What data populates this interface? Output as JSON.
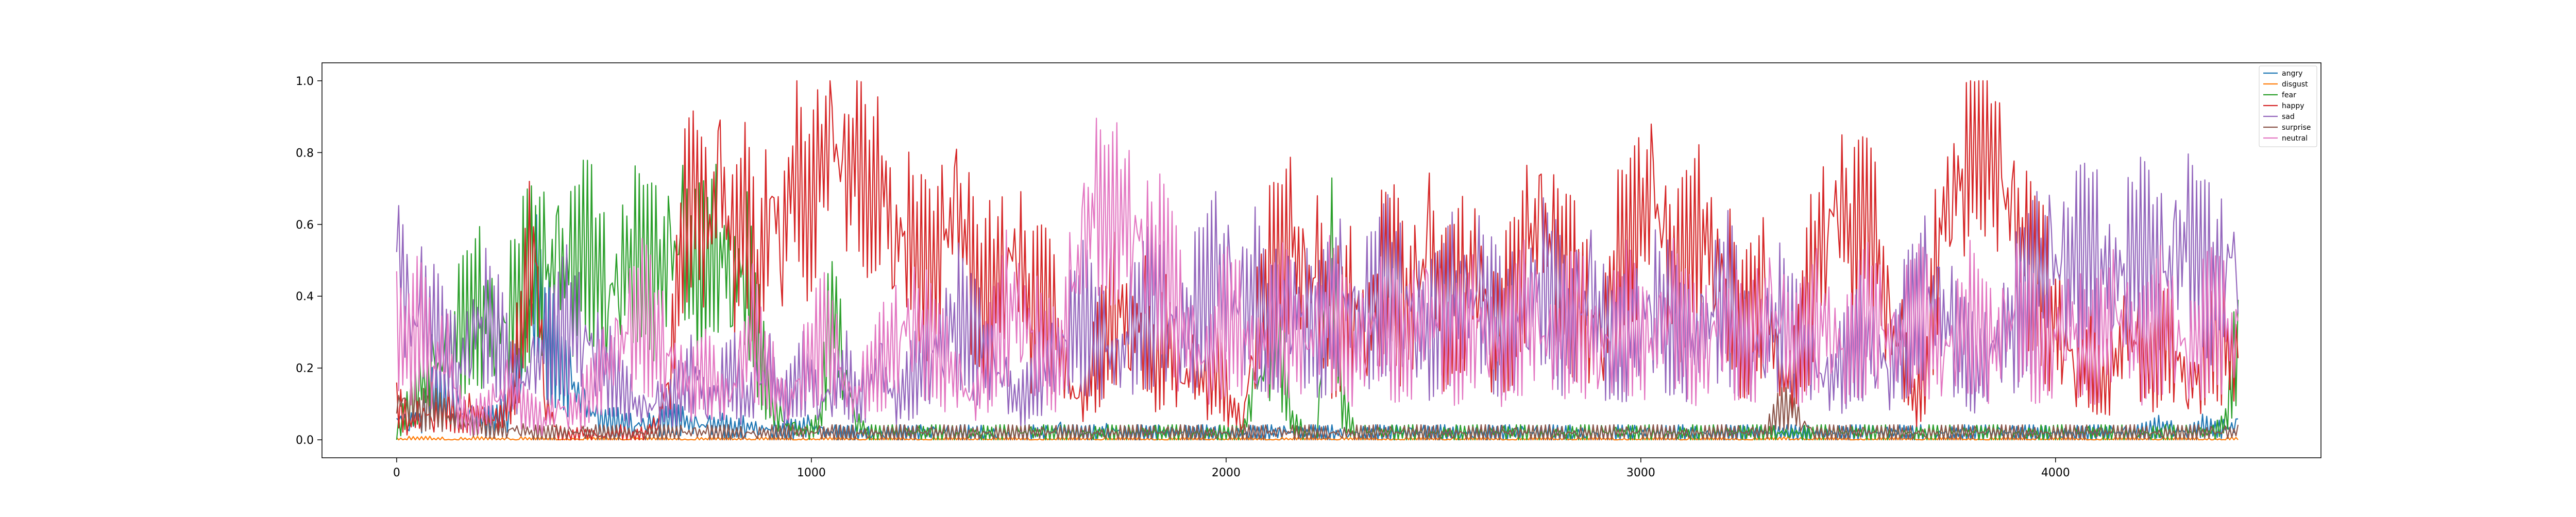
{
  "chart_data": {
    "type": "line",
    "title": "",
    "xlabel": "",
    "ylabel": "",
    "xlim": [
      -180,
      4640
    ],
    "ylim": [
      -0.05,
      1.05
    ],
    "x_ticks": [
      0,
      1000,
      2000,
      3000,
      4000
    ],
    "x_tick_labels": [
      "0",
      "1000",
      "2000",
      "3000",
      "4000"
    ],
    "y_ticks": [
      0.0,
      0.2,
      0.4,
      0.6,
      0.8,
      1.0
    ],
    "y_tick_labels": [
      "0.0",
      "0.2",
      "0.4",
      "0.6",
      "0.8",
      "1.0"
    ],
    "grid": false,
    "legend_position": "top-right",
    "x_range": [
      0,
      4440
    ],
    "sample_step": 30,
    "series": [
      {
        "name": "angry",
        "color": "#1f77b4",
        "values": [
          0.06,
          0.05,
          0.07,
          0.15,
          0.1,
          0.08,
          0.06,
          0.05,
          0.06,
          0.08,
          0.25,
          0.45,
          0.3,
          0.2,
          0.15,
          0.1,
          0.06,
          0.05,
          0.05,
          0.04,
          0.05,
          0.05,
          0.06,
          0.05,
          0.04,
          0.04,
          0.04,
          0.03,
          0.04,
          0.03,
          0.03,
          0.03,
          0.03,
          0.04,
          0.02,
          0.02,
          0.02,
          0.02,
          0.02,
          0.02,
          0.02,
          0.02,
          0.02,
          0.02,
          0.02,
          0.02,
          0.02,
          0.02,
          0.02,
          0.02,
          0.02,
          0.02,
          0.02,
          0.03,
          0.02,
          0.02,
          0.02,
          0.03,
          0.02,
          0.02,
          0.02,
          0.02,
          0.02,
          0.02,
          0.02,
          0.02,
          0.02,
          0.02,
          0.02,
          0.02,
          0.02,
          0.02,
          0.02,
          0.02,
          0.02,
          0.02,
          0.02,
          0.02,
          0.02,
          0.02,
          0.02,
          0.02,
          0.02,
          0.02,
          0.02,
          0.02,
          0.02,
          0.02,
          0.02,
          0.02,
          0.02,
          0.02,
          0.02,
          0.02,
          0.02,
          0.02,
          0.02,
          0.02,
          0.02,
          0.02,
          0.02,
          0.02,
          0.02,
          0.02,
          0.02,
          0.02,
          0.02,
          0.02,
          0.02,
          0.02,
          0.02,
          0.02,
          0.02,
          0.02,
          0.02,
          0.02,
          0.02,
          0.02,
          0.02,
          0.02,
          0.02,
          0.02,
          0.02,
          0.02,
          0.02,
          0.02,
          0.02,
          0.02,
          0.02,
          0.02,
          0.02,
          0.02,
          0.02,
          0.02,
          0.02,
          0.02,
          0.02,
          0.02,
          0.02,
          0.02,
          0.03,
          0.04,
          0.03,
          0.02,
          0.04,
          0.03,
          0.03,
          0.04
        ]
      },
      {
        "name": "disgust",
        "color": "#ff7f0e",
        "values": [
          0.0,
          0.0,
          0.0,
          0.0,
          0.0,
          0.0,
          0.0,
          0.0,
          0.0,
          0.0,
          0.0,
          0.0,
          0.0,
          0.0,
          0.0,
          0.0,
          0.0,
          0.0,
          0.0,
          0.0,
          0.0,
          0.0,
          0.0,
          0.0,
          0.0,
          0.0,
          0.0,
          0.0,
          0.0,
          0.0,
          0.0,
          0.0,
          0.0,
          0.0,
          0.0,
          0.0,
          0.0,
          0.0,
          0.0,
          0.0,
          0.0,
          0.0,
          0.0,
          0.0,
          0.0,
          0.0,
          0.0,
          0.0,
          0.0,
          0.0,
          0.0,
          0.0,
          0.0,
          0.0,
          0.0,
          0.0,
          0.0,
          0.0,
          0.0,
          0.0,
          0.0,
          0.0,
          0.0,
          0.0,
          0.0,
          0.0,
          0.0,
          0.0,
          0.0,
          0.0,
          0.0,
          0.0,
          0.0,
          0.0,
          0.0,
          0.0,
          0.0,
          0.0,
          0.0,
          0.0,
          0.0,
          0.0,
          0.0,
          0.0,
          0.0,
          0.0,
          0.0,
          0.0,
          0.0,
          0.0,
          0.0,
          0.0,
          0.0,
          0.0,
          0.0,
          0.0,
          0.0,
          0.0,
          0.0,
          0.0,
          0.0,
          0.0,
          0.0,
          0.0,
          0.0,
          0.0,
          0.0,
          0.0,
          0.0,
          0.0,
          0.0,
          0.0,
          0.0,
          0.0,
          0.0,
          0.0,
          0.0,
          0.0,
          0.0,
          0.0,
          0.0,
          0.0,
          0.0,
          0.0,
          0.0,
          0.0,
          0.0,
          0.0,
          0.0,
          0.0,
          0.0,
          0.0,
          0.0,
          0.0,
          0.0,
          0.0,
          0.0,
          0.0,
          0.0,
          0.0,
          0.0,
          0.0,
          0.0,
          0.0,
          0.0,
          0.0,
          0.0,
          0.0,
          0.0
        ]
      },
      {
        "name": "fear",
        "color": "#2ca02c",
        "values": [
          0.02,
          0.1,
          0.15,
          0.2,
          0.22,
          0.3,
          0.35,
          0.38,
          0.3,
          0.35,
          0.42,
          0.48,
          0.45,
          0.5,
          0.45,
          0.55,
          0.5,
          0.4,
          0.48,
          0.52,
          0.5,
          0.45,
          0.5,
          0.55,
          0.45,
          0.5,
          0.55,
          0.45,
          0.5,
          0.3,
          0.1,
          0.05,
          0.03,
          0.02,
          0.05,
          0.4,
          0.2,
          0.05,
          0.02,
          0.02,
          0.02,
          0.02,
          0.02,
          0.02,
          0.02,
          0.02,
          0.02,
          0.02,
          0.02,
          0.02,
          0.02,
          0.02,
          0.02,
          0.02,
          0.02,
          0.02,
          0.02,
          0.02,
          0.02,
          0.02,
          0.02,
          0.02,
          0.02,
          0.02,
          0.02,
          0.02,
          0.02,
          0.02,
          0.02,
          0.15,
          0.2,
          0.25,
          0.05,
          0.02,
          0.02,
          0.6,
          0.1,
          0.02,
          0.02,
          0.02,
          0.02,
          0.02,
          0.02,
          0.02,
          0.02,
          0.02,
          0.02,
          0.02,
          0.02,
          0.02,
          0.02,
          0.02,
          0.02,
          0.02,
          0.02,
          0.02,
          0.02,
          0.02,
          0.02,
          0.02,
          0.02,
          0.02,
          0.02,
          0.02,
          0.02,
          0.02,
          0.02,
          0.02,
          0.02,
          0.02,
          0.02,
          0.02,
          0.02,
          0.02,
          0.02,
          0.02,
          0.02,
          0.02,
          0.02,
          0.02,
          0.02,
          0.02,
          0.02,
          0.02,
          0.02,
          0.02,
          0.02,
          0.02,
          0.02,
          0.02,
          0.02,
          0.02,
          0.02,
          0.02,
          0.02,
          0.02,
          0.02,
          0.02,
          0.02,
          0.02,
          0.02,
          0.02,
          0.02,
          0.02,
          0.02,
          0.02,
          0.02,
          0.05,
          0.3
        ]
      },
      {
        "name": "happy",
        "color": "#d62728",
        "values": [
          0.1,
          0.05,
          0.08,
          0.06,
          0.1,
          0.05,
          0.08,
          0.06,
          0.05,
          0.1,
          0.3,
          0.6,
          0.1,
          0.02,
          0.01,
          0.02,
          0.01,
          0.01,
          0.02,
          0.01,
          0.02,
          0.05,
          0.2,
          0.6,
          0.7,
          0.55,
          0.75,
          0.5,
          0.65,
          0.4,
          0.7,
          0.55,
          0.8,
          0.6,
          0.75,
          0.85,
          0.7,
          0.8,
          0.65,
          0.75,
          0.55,
          0.6,
          0.5,
          0.45,
          0.55,
          0.65,
          0.5,
          0.35,
          0.45,
          0.5,
          0.55,
          0.35,
          0.4,
          0.3,
          0.15,
          0.1,
          0.2,
          0.3,
          0.4,
          0.3,
          0.35,
          0.2,
          0.3,
          0.15,
          0.2,
          0.15,
          0.2,
          0.1,
          0.05,
          0.3,
          0.45,
          0.5,
          0.55,
          0.4,
          0.45,
          0.3,
          0.35,
          0.4,
          0.3,
          0.45,
          0.5,
          0.35,
          0.4,
          0.55,
          0.35,
          0.4,
          0.45,
          0.5,
          0.3,
          0.35,
          0.4,
          0.55,
          0.6,
          0.5,
          0.45,
          0.4,
          0.35,
          0.3,
          0.5,
          0.55,
          0.6,
          0.7,
          0.5,
          0.45,
          0.55,
          0.6,
          0.5,
          0.45,
          0.3,
          0.35,
          0.4,
          0.2,
          0.15,
          0.3,
          0.5,
          0.6,
          0.7,
          0.55,
          0.65,
          0.5,
          0.3,
          0.25,
          0.1,
          0.2,
          0.6,
          0.7,
          0.75,
          0.85,
          0.8,
          0.7,
          0.6,
          0.5,
          0.45,
          0.35,
          0.3,
          0.2,
          0.25,
          0.15,
          0.2,
          0.3,
          0.25,
          0.2,
          0.3,
          0.25,
          0.15,
          0.2,
          0.3,
          0.25,
          0.2
        ]
      },
      {
        "name": "sad",
        "color": "#9467bd",
        "values": [
          0.6,
          0.3,
          0.35,
          0.3,
          0.25,
          0.2,
          0.3,
          0.35,
          0.3,
          0.2,
          0.15,
          0.2,
          0.25,
          0.3,
          0.35,
          0.3,
          0.25,
          0.2,
          0.15,
          0.1,
          0.08,
          0.1,
          0.1,
          0.15,
          0.2,
          0.1,
          0.15,
          0.2,
          0.1,
          0.15,
          0.2,
          0.1,
          0.15,
          0.2,
          0.1,
          0.15,
          0.2,
          0.1,
          0.15,
          0.2,
          0.1,
          0.15,
          0.2,
          0.25,
          0.3,
          0.35,
          0.3,
          0.25,
          0.2,
          0.15,
          0.1,
          0.15,
          0.2,
          0.25,
          0.3,
          0.35,
          0.3,
          0.25,
          0.2,
          0.3,
          0.35,
          0.4,
          0.35,
          0.3,
          0.35,
          0.4,
          0.45,
          0.4,
          0.35,
          0.4,
          0.3,
          0.35,
          0.4,
          0.35,
          0.3,
          0.35,
          0.4,
          0.3,
          0.35,
          0.4,
          0.45,
          0.4,
          0.35,
          0.3,
          0.35,
          0.4,
          0.35,
          0.4,
          0.35,
          0.3,
          0.35,
          0.4,
          0.45,
          0.4,
          0.3,
          0.35,
          0.4,
          0.3,
          0.25,
          0.3,
          0.35,
          0.4,
          0.35,
          0.3,
          0.25,
          0.3,
          0.35,
          0.4,
          0.3,
          0.25,
          0.3,
          0.35,
          0.3,
          0.25,
          0.2,
          0.15,
          0.2,
          0.25,
          0.3,
          0.25,
          0.2,
          0.3,
          0.35,
          0.4,
          0.35,
          0.3,
          0.25,
          0.2,
          0.25,
          0.3,
          0.35,
          0.4,
          0.45,
          0.5,
          0.45,
          0.5,
          0.55,
          0.5,
          0.45,
          0.5,
          0.55,
          0.5,
          0.45,
          0.5,
          0.55,
          0.5,
          0.45,
          0.5,
          0.55
        ]
      },
      {
        "name": "surprise",
        "color": "#8c564b",
        "values": [
          0.1,
          0.12,
          0.08,
          0.1,
          0.06,
          0.05,
          0.04,
          0.04,
          0.03,
          0.03,
          0.03,
          0.02,
          0.02,
          0.02,
          0.02,
          0.02,
          0.02,
          0.02,
          0.02,
          0.02,
          0.02,
          0.02,
          0.02,
          0.02,
          0.02,
          0.02,
          0.02,
          0.02,
          0.02,
          0.02,
          0.02,
          0.02,
          0.02,
          0.02,
          0.02,
          0.02,
          0.02,
          0.02,
          0.02,
          0.02,
          0.02,
          0.02,
          0.02,
          0.02,
          0.02,
          0.02,
          0.02,
          0.02,
          0.02,
          0.02,
          0.02,
          0.02,
          0.02,
          0.02,
          0.02,
          0.02,
          0.02,
          0.02,
          0.02,
          0.02,
          0.02,
          0.02,
          0.02,
          0.02,
          0.02,
          0.02,
          0.02,
          0.02,
          0.02,
          0.02,
          0.02,
          0.02,
          0.02,
          0.02,
          0.02,
          0.02,
          0.02,
          0.02,
          0.02,
          0.02,
          0.02,
          0.02,
          0.02,
          0.02,
          0.02,
          0.02,
          0.02,
          0.02,
          0.02,
          0.02,
          0.02,
          0.02,
          0.02,
          0.02,
          0.02,
          0.02,
          0.02,
          0.02,
          0.02,
          0.02,
          0.02,
          0.02,
          0.02,
          0.02,
          0.02,
          0.02,
          0.02,
          0.02,
          0.02,
          0.02,
          0.02,
          0.08,
          0.1,
          0.05,
          0.02,
          0.02,
          0.02,
          0.02,
          0.02,
          0.02,
          0.02,
          0.02,
          0.02,
          0.02,
          0.02,
          0.02,
          0.02,
          0.02,
          0.02,
          0.02,
          0.02,
          0.02,
          0.02,
          0.02,
          0.02,
          0.02,
          0.02,
          0.02,
          0.02,
          0.02,
          0.02,
          0.02,
          0.02,
          0.02,
          0.02,
          0.02,
          0.02,
          0.02,
          0.02
        ]
      },
      {
        "name": "neutral",
        "color": "#e377c2",
        "values": [
          0.3,
          0.25,
          0.35,
          0.2,
          0.3,
          0.1,
          0.05,
          0.08,
          0.1,
          0.15,
          0.1,
          0.08,
          0.05,
          0.1,
          0.08,
          0.1,
          0.15,
          0.2,
          0.25,
          0.3,
          0.35,
          0.3,
          0.25,
          0.2,
          0.15,
          0.2,
          0.15,
          0.1,
          0.2,
          0.3,
          0.2,
          0.15,
          0.1,
          0.2,
          0.25,
          0.3,
          0.2,
          0.1,
          0.15,
          0.2,
          0.25,
          0.3,
          0.35,
          0.3,
          0.25,
          0.2,
          0.15,
          0.1,
          0.2,
          0.3,
          0.4,
          0.35,
          0.3,
          0.25,
          0.2,
          0.4,
          0.55,
          0.65,
          0.6,
          0.65,
          0.6,
          0.55,
          0.5,
          0.45,
          0.3,
          0.25,
          0.2,
          0.3,
          0.35,
          0.3,
          0.25,
          0.3,
          0.35,
          0.3,
          0.25,
          0.3,
          0.35,
          0.3,
          0.25,
          0.3,
          0.35,
          0.3,
          0.25,
          0.3,
          0.35,
          0.3,
          0.25,
          0.3,
          0.35,
          0.3,
          0.25,
          0.3,
          0.35,
          0.3,
          0.25,
          0.3,
          0.35,
          0.3,
          0.25,
          0.3,
          0.35,
          0.3,
          0.25,
          0.3,
          0.35,
          0.3,
          0.25,
          0.3,
          0.35,
          0.3,
          0.25,
          0.3,
          0.35,
          0.3,
          0.25,
          0.3,
          0.35,
          0.3,
          0.25,
          0.3,
          0.35,
          0.3,
          0.25,
          0.3,
          0.35,
          0.3,
          0.25,
          0.3,
          0.35,
          0.3,
          0.25,
          0.3,
          0.35,
          0.3,
          0.25,
          0.3,
          0.35,
          0.3,
          0.25,
          0.3,
          0.35,
          0.3,
          0.25,
          0.3,
          0.35,
          0.3,
          0.25,
          0.3,
          0.35,
          0.3,
          0.25
        ]
      }
    ]
  }
}
